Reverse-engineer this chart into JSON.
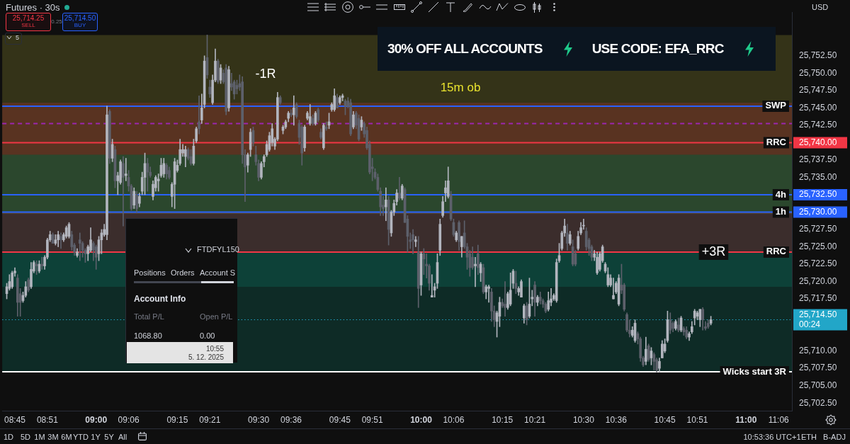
{
  "chart_data": [
    {
      "type": "candlestick",
      "title": "Futures · 30s",
      "ylabel": "USD",
      "x": [
        8.725,
        8.7333,
        8.7417,
        8.75,
        8.7583,
        8.7667,
        8.775,
        8.7833,
        8.7917,
        8.8,
        8.8083,
        8.8167,
        8.825,
        8.8333,
        8.8417,
        8.85,
        8.8583,
        8.8667,
        8.875,
        8.8833,
        8.8917,
        8.9,
        8.9083,
        8.9167,
        8.925,
        8.9333,
        8.9417,
        8.95,
        8.9583,
        8.9667,
        8.975,
        8.9833,
        8.9917,
        9,
        9.0083,
        9.0167,
        9.025,
        9.0333,
        9.0417,
        9.05,
        9.0583,
        9.0667,
        9.075,
        9.0833,
        9.0917,
        9.1,
        9.1083,
        9.1167,
        9.125,
        9.1333,
        9.1417,
        9.15,
        9.1583,
        9.1667,
        9.175,
        9.1833,
        9.1917,
        9.2,
        9.2083,
        9.2167,
        9.225,
        9.2333,
        9.2417,
        9.25,
        9.2583,
        9.2667,
        9.275,
        9.2833,
        9.2917,
        9.3,
        9.3083,
        9.3167,
        9.325,
        9.3333,
        9.3417,
        9.35,
        9.3583,
        9.3667,
        9.375,
        9.3833,
        9.3917,
        9.4,
        9.4083,
        9.4167,
        9.425,
        9.4333,
        9.4417,
        9.45,
        9.4583,
        9.4667,
        9.475,
        9.4833,
        9.4917,
        9.5,
        9.5083,
        9.5167,
        9.525,
        9.5333,
        9.5417,
        9.55,
        9.5583,
        9.5667,
        9.575,
        9.5833,
        9.5917,
        9.6,
        9.6083,
        9.6167,
        9.625,
        9.6333,
        9.6417,
        9.65,
        9.6583,
        9.6667,
        9.675,
        9.6833,
        9.6917,
        9.7,
        9.7083,
        9.7167,
        9.725,
        9.7333,
        9.7417,
        9.75,
        9.7583,
        9.7667,
        9.775,
        9.7833,
        9.7917,
        9.8,
        9.8083,
        9.8167,
        9.825,
        9.8333,
        9.8417,
        9.85,
        9.8583,
        9.8667,
        9.875,
        9.8833,
        9.8917,
        9.9,
        9.9083,
        9.9167,
        9.925,
        9.9333,
        9.9417,
        9.95,
        9.9583,
        9.9667,
        9.975,
        9.9833,
        9.9917,
        10,
        10.0083,
        10.0167,
        10.025,
        10.0333,
        10.0417,
        10.05,
        10.0583,
        10.0667,
        10.075,
        10.0833,
        10.0917,
        10.1,
        10.1083,
        10.1167,
        10.125,
        10.1333,
        10.1417,
        10.15,
        10.1583,
        10.1667,
        10.175,
        10.1833,
        10.1917,
        10.2,
        10.2083,
        10.2167,
        10.225,
        10.2333,
        10.2417,
        10.25,
        10.2583,
        10.2667,
        10.275,
        10.2833,
        10.2917,
        10.3,
        10.3083,
        10.3167,
        10.325,
        10.3333,
        10.3417,
        10.35,
        10.3583,
        10.3667,
        10.375,
        10.3833,
        10.3917,
        10.4,
        10.4083,
        10.4167,
        10.425,
        10.4333,
        10.4417,
        10.45,
        10.4583,
        10.4667,
        10.475,
        10.4833,
        10.4917,
        10.5,
        10.5083,
        10.5167,
        10.525,
        10.5333,
        10.5417,
        10.55,
        10.5583,
        10.5667,
        10.575,
        10.5833,
        10.5917,
        10.6,
        10.6083,
        10.6167,
        10.625,
        10.6333,
        10.6417,
        10.65,
        10.6583,
        10.6667,
        10.675,
        10.6833,
        10.6917,
        10.7,
        10.7083,
        10.7167,
        10.725,
        10.7333,
        10.7417,
        10.75,
        10.7583,
        10.7667,
        10.775,
        10.7833,
        10.7917,
        10.8,
        10.8083,
        10.8167,
        10.825,
        10.8333,
        10.8417,
        10.85,
        10.8583,
        10.8667,
        10.875,
        10.8833,
        10.8917
      ],
      "ohlc": [
        [
          25718.25,
          25719.75,
          25717.5,
          25719.25
        ],
        [
          25719,
          25721,
          25718.75,
          25720
        ],
        [
          25719.25,
          25721.5,
          25719,
          25721.25
        ],
        [
          25721.25,
          25722,
          25720.75,
          25721.5
        ],
        [
          25720.5,
          25721,
          25715,
          25717
        ],
        [
          25718.25,
          25719,
          25715,
          25717
        ],
        [
          25717.25,
          25718.5,
          25717,
          25718
        ],
        [
          25718,
          25720,
          25717.75,
          25719.25
        ],
        [
          25720.25,
          25720.5,
          25718.5,
          25718.75
        ],
        [
          25719.25,
          25722.75,
          25719,
          25721.75
        ],
        [
          25721.5,
          25723,
          25721.25,
          25722.75
        ],
        [
          25722.5,
          25723,
          25721,
          25722.25
        ],
        [
          25721.5,
          25723,
          25721.25,
          25722.5
        ],
        [
          25722.5,
          25723.5,
          25721.75,
          25722.25
        ],
        [
          25722.25,
          25723.75,
          25721.75,
          25723.5
        ],
        [
          25723.5,
          25726.25,
          25723.25,
          25726
        ],
        [
          25726,
          25727.25,
          25725.75,
          25726.75
        ],
        [
          25726.75,
          25727,
          25725.5,
          25725.5
        ],
        [
          25725.5,
          25726.75,
          25725.25,
          25726
        ],
        [
          25726,
          25727.25,
          25725,
          25726.75
        ],
        [
          25726.5,
          25727,
          25724.75,
          25726
        ],
        [
          25726,
          25727,
          25725.75,
          25726.75
        ],
        [
          25726.5,
          25728,
          25726.25,
          25727.75
        ],
        [
          25726.5,
          25728.5,
          25726.25,
          25728.25
        ],
        [
          25726.75,
          25727.25,
          25724.5,
          25725
        ],
        [
          25725.25,
          25725.5,
          25723.75,
          25724.25
        ],
        [
          25723.75,
          25724.75,
          25723.5,
          25724.25
        ],
        [
          25726,
          25727,
          25723,
          25725.5
        ],
        [
          25725.5,
          25725.75,
          25723.5,
          25724.5
        ],
        [
          25724.5,
          25724.75,
          25722.75,
          25724
        ],
        [
          25724,
          25725.25,
          25723,
          25725
        ],
        [
          25724.5,
          25727.75,
          25724.25,
          25726
        ],
        [
          25725.5,
          25725.75,
          25723,
          25724.5
        ],
        [
          25725,
          25725.25,
          25721.75,
          25723.5
        ],
        [
          25724,
          25726.5,
          25723,
          25726
        ],
        [
          25726,
          25727.5,
          25724,
          25727
        ],
        [
          25726.75,
          25728.25,
          25726.5,
          25727.5
        ],
        [
          25726.75,
          25745.25,
          25726,
          25744
        ],
        [
          25744.5,
          25744.75,
          25737,
          25737.75
        ],
        [
          25737.75,
          25740.5,
          25737.25,
          25739.75
        ],
        [
          25739,
          25739.5,
          25733.5,
          25734.5
        ],
        [
          25734.5,
          25735.75,
          25732.5,
          25735.25
        ],
        [
          25734.25,
          25737.5,
          25734,
          25737.25
        ],
        [
          25737,
          25738,
          25728,
          25735
        ],
        [
          25735.25,
          25737.75,
          25734.5,
          25735.5
        ],
        [
          25735,
          25736,
          25733,
          25733.75
        ],
        [
          25733.75,
          25734,
          25730.25,
          25730.5
        ],
        [
          25731,
          25733.5,
          25730.5,
          25733
        ],
        [
          25732.5,
          25733,
          25730,
          25730.5
        ],
        [
          25731.25,
          25732.75,
          25730.75,
          25732.25
        ],
        [
          25733,
          25735.75,
          25732.5,
          25735
        ],
        [
          25735,
          25738.5,
          25732.5,
          25737
        ],
        [
          25737,
          25737.75,
          25733,
          25735.75
        ],
        [
          25735.75,
          25736.5,
          25735,
          25735.25
        ],
        [
          25732.25,
          25734.5,
          25731.75,
          25734
        ],
        [
          25733.5,
          25735.25,
          25733,
          25735
        ],
        [
          25734.5,
          25735.5,
          25733,
          25734.75
        ],
        [
          25735.25,
          25737.75,
          25735,
          25736.75
        ],
        [
          25735.5,
          25737.75,
          25735,
          25737
        ],
        [
          25736.75,
          25737,
          25734.75,
          25735.5
        ],
        [
          25736,
          25736.5,
          25734.75,
          25735
        ],
        [
          25732.25,
          25734.25,
          25730.75,
          25734
        ],
        [
          25734,
          25737.75,
          25730.5,
          25737.25
        ],
        [
          25736,
          25737.5,
          25735.75,
          25736.75
        ],
        [
          25737,
          25740.5,
          25736.75,
          25739
        ],
        [
          25738.5,
          25739.75,
          25738,
          25739
        ],
        [
          25738,
          25739.5,
          25736.5,
          25739
        ],
        [
          25739,
          25739.25,
          25737.5,
          25737.75
        ],
        [
          25738,
          25739,
          25736.75,
          25737
        ],
        [
          25737,
          25740.5,
          25736.75,
          25739.5
        ],
        [
          25740.25,
          25742.25,
          25740,
          25742
        ],
        [
          25743,
          25746.75,
          25741.25,
          25742
        ],
        [
          25743.25,
          25747,
          25742.75,
          25745
        ],
        [
          25745.5,
          25752.5,
          25745,
          25751.75
        ],
        [
          25752.25,
          25755.5,
          25749.25,
          25749.75
        ],
        [
          25748,
          25749,
          25746.5,
          25747
        ],
        [
          25745.75,
          25749.75,
          25745.5,
          25749
        ],
        [
          25749,
          25753.5,
          25748.75,
          25751.75
        ],
        [
          25751.75,
          25752,
          25748.5,
          25748.75
        ],
        [
          25749,
          25751.25,
          25748.5,
          25750.75
        ],
        [
          25750,
          25750.5,
          25748.5,
          25748.75
        ],
        [
          25750.75,
          25751.25,
          25744,
          25744.5
        ],
        [
          25745,
          25751,
          25744.5,
          25750.5
        ],
        [
          25748.5,
          25750,
          25747.5,
          25748
        ],
        [
          25748.75,
          25749,
          25746.25,
          25747
        ],
        [
          25748.25,
          25749,
          25747,
          25747.75
        ],
        [
          25748.5,
          25749.75,
          25747.5,
          25748
        ],
        [
          25748.75,
          25749.5,
          25737,
          25738.25
        ],
        [
          25738.25,
          25739,
          25731.5,
          25736.5
        ],
        [
          25736.75,
          25738.5,
          25735.75,
          25738.25
        ],
        [
          25739,
          25742,
          25738,
          25741.5
        ],
        [
          25741.75,
          25742.25,
          25739.5,
          25740
        ],
        [
          25738.25,
          25739.5,
          25736.75,
          25737.25
        ],
        [
          25737,
          25737.5,
          25734.5,
          25735
        ],
        [
          25735,
          25737.25,
          25734.75,
          25737
        ],
        [
          25737.25,
          25738.25,
          25736.5,
          25738
        ],
        [
          25738.25,
          25740.25,
          25738,
          25739.75
        ],
        [
          25739,
          25741.5,
          25738.75,
          25741
        ],
        [
          25740,
          25742.75,
          25739.5,
          25742
        ],
        [
          25739.5,
          25740.75,
          25739,
          25740.5
        ],
        [
          25740.5,
          25747.25,
          25740.25,
          25746.5
        ],
        [
          25746.5,
          25746.75,
          25745.5,
          25745.75
        ],
        [
          25741.75,
          25742.5,
          25741.25,
          25742.25
        ],
        [
          25742.25,
          25743.25,
          25742,
          25743
        ],
        [
          25743.5,
          25744.5,
          25743,
          25744.25
        ],
        [
          25744.25,
          25744.75,
          25743.75,
          25744
        ],
        [
          25744,
          25746.75,
          25742.5,
          25745
        ],
        [
          25745.5,
          25745.75,
          25743.5,
          25743.75
        ],
        [
          25742.75,
          25743.25,
          25739.75,
          25740.75
        ],
        [
          25742.25,
          25742.5,
          25736.75,
          25738.5
        ],
        [
          25739.25,
          25742.5,
          25738.75,
          25742.25
        ],
        [
          25743.5,
          25744.5,
          25743.25,
          25744.25
        ],
        [
          25742.75,
          25745.5,
          25742.5,
          25743.75
        ],
        [
          25743.5,
          25744,
          25742.5,
          25742.75
        ],
        [
          25742.75,
          25744.5,
          25742.5,
          25744.25
        ],
        [
          25744.75,
          25745,
          25743,
          25743.25
        ],
        [
          25741.5,
          25742,
          25740.5,
          25740.75
        ],
        [
          25739.25,
          25742.75,
          25739,
          25742.5
        ],
        [
          25742.25,
          25743,
          25741.75,
          25742
        ],
        [
          25742.5,
          25744.25,
          25742,
          25743
        ],
        [
          25744.75,
          25745.75,
          25744.5,
          25745.5
        ],
        [
          25744.75,
          25747.75,
          25744.5,
          25746.75
        ],
        [
          25746.5,
          25747,
          25745,
          25745
        ],
        [
          25745.75,
          25746.75,
          25745.5,
          25746.5
        ],
        [
          25746.5,
          25747,
          25746,
          25746.75
        ],
        [
          25746,
          25746.25,
          25744,
          25745.25
        ],
        [
          25746,
          25746.5,
          25745,
          25745.25
        ],
        [
          25745.75,
          25746.25,
          25741,
          25741.25
        ],
        [
          25742.25,
          25744.5,
          25742,
          25744
        ],
        [
          25744.25,
          25744.5,
          25742,
          25742.5
        ],
        [
          25743.5,
          25744,
          25740.25,
          25740.5
        ],
        [
          25742.25,
          25743.75,
          25741.75,
          25743.25
        ],
        [
          25742.75,
          25743,
          25740.75,
          25741.25
        ],
        [
          25741.75,
          25742.25,
          25739,
          25739.25
        ],
        [
          25739.75,
          25740.25,
          25735.5,
          25735.75
        ],
        [
          25736.5,
          25737.75,
          25734.5,
          25736.25
        ],
        [
          25735.75,
          25736.25,
          25734.75,
          25735
        ],
        [
          25735,
          25735.5,
          25733,
          25733.25
        ],
        [
          25733,
          25733.5,
          25729.5,
          25730.75
        ],
        [
          25731,
          25732.25,
          25729.5,
          25730.5
        ],
        [
          25730.75,
          25733.5,
          25728.75,
          25731.75
        ],
        [
          25731.75,
          25732.25,
          25725.25,
          25727.5
        ],
        [
          25727,
          25730.25,
          25726.5,
          25730
        ],
        [
          25730,
          25731.75,
          25729.5,
          25731.25
        ],
        [
          25731.5,
          25733.25,
          25731,
          25732.75
        ],
        [
          25732.75,
          25735,
          25731.75,
          25732
        ],
        [
          25732,
          25734,
          25731.75,
          25733.75
        ],
        [
          25733.25,
          25733.5,
          25728.5,
          25728.5
        ],
        [
          25729,
          25729.5,
          25724.25,
          25726.5
        ],
        [
          25726,
          25727,
          25724.75,
          25725.75
        ],
        [
          25726.75,
          25727.5,
          25724,
          25726
        ],
        [
          25725.75,
          25726.5,
          25725,
          25726
        ],
        [
          25724.25,
          25726.5,
          25716.25,
          25719
        ],
        [
          25719.5,
          25724.25,
          25718,
          25724
        ],
        [
          25724,
          25724.75,
          25721,
          25723.25
        ],
        [
          25722.5,
          25724,
          25720.5,
          25722.25
        ],
        [
          25722.25,
          25722.5,
          25718.75,
          25719.75
        ],
        [
          25717.75,
          25721,
          25717.75,
          25718
        ],
        [
          25718.75,
          25719.75,
          25717.75,
          25719.25
        ],
        [
          25719.75,
          25724,
          25719,
          25722.75
        ],
        [
          25724.5,
          25729,
          25723.75,
          25728.25
        ],
        [
          25729.5,
          25732.25,
          25729.25,
          25731.5
        ],
        [
          25732.75,
          25734.5,
          25731.5,
          25733.5
        ],
        [
          25732.25,
          25736.5,
          25732,
          25734.5
        ],
        [
          25732.5,
          25733,
          25728.75,
          25729
        ],
        [
          25728.5,
          25729,
          25726.5,
          25726.75
        ],
        [
          25726,
          25727.25,
          25725.75,
          25727
        ],
        [
          25728.5,
          25728.75,
          25724.5,
          25725.75
        ],
        [
          25725,
          25726.5,
          25723.5,
          25726.5
        ],
        [
          25727,
          25728.75,
          25724.75,
          25725
        ],
        [
          25725,
          25725.5,
          25721.75,
          25723.5
        ],
        [
          25724,
          25724.5,
          25720.75,
          25722
        ],
        [
          25723.5,
          25725,
          25721.75,
          25722
        ],
        [
          25722.25,
          25723.5,
          25719.25,
          25722.5
        ],
        [
          25724,
          25725.25,
          25721,
          25722
        ],
        [
          25721.25,
          25722.75,
          25720,
          25722.5
        ],
        [
          25722,
          25722.5,
          25718.25,
          25718.5
        ],
        [
          25718.5,
          25719.5,
          25717.5,
          25719.25
        ],
        [
          25719,
          25719.5,
          25717,
          25719.25
        ],
        [
          25718.5,
          25719,
          25714.25,
          25715.75
        ],
        [
          25715.75,
          25716.5,
          25713.5,
          25714.5
        ],
        [
          25714.25,
          25715.75,
          25712,
          25715.5
        ],
        [
          25715,
          25717.75,
          25713.5,
          25717
        ],
        [
          25717,
          25717.5,
          25716.25,
          25716.5
        ],
        [
          25716.75,
          25720,
          25715,
          25716.25
        ],
        [
          25716.25,
          25718.5,
          25716,
          25718.25
        ],
        [
          25716.75,
          25721.25,
          25716.5,
          25718.75
        ],
        [
          25719.75,
          25721.75,
          25719,
          25721.5
        ],
        [
          25719.75,
          25721.5,
          25718.25,
          25719
        ],
        [
          25718.5,
          25719.25,
          25718,
          25719
        ],
        [
          25717.75,
          25720.25,
          25717.75,
          25720
        ],
        [
          25714.75,
          25716.75,
          25714,
          25716.5
        ],
        [
          25716.5,
          25717,
          25713.75,
          25714.5
        ],
        [
          25715,
          25720.5,
          25714.75,
          25716.75
        ],
        [
          25717.5,
          25718.75,
          25716.5,
          25717.75
        ],
        [
          25719.5,
          25720,
          25715,
          25717
        ],
        [
          25717,
          25718,
          25716.5,
          25717.75
        ],
        [
          25717.75,
          25718.5,
          25716.75,
          25717.25
        ],
        [
          25717.25,
          25717.5,
          25716.25,
          25716.75
        ],
        [
          25716.75,
          25717,
          25715.5,
          25715.75
        ],
        [
          25716,
          25718.5,
          25715.75,
          25717.25
        ],
        [
          25717,
          25719,
          25716.5,
          25717.5
        ],
        [
          25717.5,
          25718.25,
          25717.25,
          25718
        ],
        [
          25717.25,
          25723.25,
          25717,
          25722.75
        ],
        [
          25723,
          25725.5,
          25722.75,
          25723.75
        ],
        [
          25724.75,
          25727.25,
          25724.5,
          25727
        ],
        [
          25727,
          25729,
          25726.5,
          25728
        ],
        [
          25727,
          25728.25,
          25724.5,
          25725.5
        ],
        [
          25725.5,
          25727.25,
          25725.25,
          25726.75
        ],
        [
          25725,
          25726,
          25722.25,
          25722.5
        ],
        [
          25724,
          25724.5,
          25722.25,
          25722.5
        ],
        [
          25724.75,
          25727.25,
          25724.5,
          25726.5
        ],
        [
          25727,
          25728.5,
          25726.75,
          25727.75
        ],
        [
          25728,
          25729,
          25727.5,
          25728
        ],
        [
          25727.25,
          25727.75,
          25724.5,
          25725
        ],
        [
          25726,
          25726.25,
          25723.75,
          25724.75
        ],
        [
          25725,
          25725.25,
          25723,
          25723.5
        ],
        [
          25723.5,
          25724.5,
          25723,
          25724
        ],
        [
          25721.25,
          25724.25,
          25721,
          25723.5
        ],
        [
          25721.75,
          25724.25,
          25721.5,
          25724
        ],
        [
          25723,
          25725.25,
          25722.75,
          25725
        ],
        [
          25721.5,
          25722.75,
          25721.25,
          25722.5
        ],
        [
          25719.5,
          25722,
          25719.25,
          25721
        ],
        [
          25719.5,
          25721,
          25719.25,
          25720.5
        ],
        [
          25717.5,
          25720.5,
          25717.5,
          25718
        ],
        [
          25718.5,
          25720,
          25718.25,
          25719.75
        ],
        [
          25716.75,
          25721,
          25716.5,
          25720.5
        ],
        [
          25719.5,
          25722.5,
          25718.25,
          25718.75
        ],
        [
          25719.5,
          25719.75,
          25715.75,
          25716
        ],
        [
          25715.25,
          25715.5,
          25712.75,
          25713
        ],
        [
          25713,
          25714.5,
          25712,
          25712.5
        ],
        [
          25712.25,
          25713.5,
          25712,
          25713
        ],
        [
          25711.5,
          25714.5,
          25711.25,
          25714
        ],
        [
          25712.5,
          25712.75,
          25711,
          25711.75
        ],
        [
          25711.75,
          25712,
          25708.5,
          25709
        ],
        [
          25709,
          25709.25,
          25707.75,
          25708
        ],
        [
          25708.5,
          25712,
          25708,
          25710.25
        ],
        [
          25710.75,
          25711,
          25708.5,
          25708.75
        ],
        [
          25709,
          25710.5,
          25708,
          25710
        ],
        [
          25709.5,
          25709.75,
          25707.25,
          25708.5
        ],
        [
          25708.75,
          25709,
          25707,
          25707.25
        ],
        [
          25707.5,
          25709,
          25707,
          25708.5
        ],
        [
          25709,
          25711.5,
          25709,
          25711
        ],
        [
          25710,
          25711.75,
          25709.75,
          25711
        ],
        [
          25711.5,
          25715.75,
          25711.25,
          25714.5
        ],
        [
          25714.5,
          25715.5,
          25712.5,
          25713
        ],
        [
          25714,
          25714.25,
          25712.75,
          25713.25
        ],
        [
          25713.25,
          25714.5,
          25713,
          25714.25
        ],
        [
          25713.75,
          25714.75,
          25712.75,
          25713
        ],
        [
          25713,
          25715,
          25712.75,
          25714.75
        ],
        [
          25713.25,
          25713.5,
          25712.25,
          25712.75
        ],
        [
          25713,
          25713.5,
          25711.75,
          25712
        ],
        [
          25712,
          25712.75,
          25711.5,
          25712.5
        ],
        [
          25712.75,
          25714.25,
          25712.5,
          25713.5
        ],
        [
          25714.75,
          25716,
          25713.75,
          25715.75
        ],
        [
          25715,
          25715.75,
          25714.5,
          25715.5
        ],
        [
          25714.5,
          25716,
          25713.5,
          25716
        ],
        [
          25716,
          25716.25,
          25713,
          25714.5
        ],
        [
          25713.5,
          25714.25,
          25713,
          25713.25
        ],
        [
          25714,
          25714.5,
          25713.25,
          25713.5
        ],
        [
          25714,
          25715,
          25713.75,
          25714.5
        ]
      ],
      "xlim": [
        8.711,
        11.141
      ],
      "xticks": [
        {
          "value": 8.75,
          "label": "08:45"
        },
        {
          "value": 8.85,
          "label": "08:51"
        },
        {
          "value": 9,
          "label": "09:00"
        },
        {
          "value": 9.1,
          "label": "09:06"
        },
        {
          "value": 9.25,
          "label": "09:15"
        },
        {
          "value": 9.35,
          "label": "09:21"
        },
        {
          "value": 9.5,
          "label": "09:30"
        },
        {
          "value": 9.6,
          "label": "09:36"
        },
        {
          "value": 9.75,
          "label": "09:45"
        },
        {
          "value": 9.85,
          "label": "09:51"
        },
        {
          "value": 10,
          "label": "10:00"
        },
        {
          "value": 10.1,
          "label": "10:06"
        },
        {
          "value": 10.25,
          "label": "10:15"
        },
        {
          "value": 10.35,
          "label": "10:21"
        },
        {
          "value": 10.5,
          "label": "10:30"
        },
        {
          "value": 10.6,
          "label": "10:36"
        },
        {
          "value": 10.75,
          "label": "10:45"
        },
        {
          "value": 10.85,
          "label": "10:51"
        },
        {
          "value": 11,
          "label": "11:00"
        },
        {
          "value": 11.1,
          "label": "11:06"
        }
      ],
      "ylim": [
        25701.4,
        25758.8
      ],
      "yticks": [
        {
          "value": 25702.5,
          "label": "25,702.50"
        },
        {
          "value": 25705,
          "label": "25,705.00"
        },
        {
          "value": 25707.5,
          "label": "25,707.50"
        },
        {
          "value": 25710,
          "label": "25,710.00"
        },
        {
          "value": 25714.5,
          "label": "25,714.50\n00:24"
        },
        {
          "value": 25717.5,
          "label": "25,717.50"
        },
        {
          "value": 25720,
          "label": "25,720.00"
        },
        {
          "value": 25722.5,
          "label": "25,722.50"
        },
        {
          "value": 25725,
          "label": "25,725.00"
        },
        {
          "value": 25727.5,
          "label": "25,727.50"
        },
        {
          "value": 25730,
          "label": "25,730.00"
        },
        {
          "value": 25732.5,
          "label": "25,732.50"
        },
        {
          "value": 25735,
          "label": "25,735.00"
        },
        {
          "value": 25737.5,
          "label": "25,737.50"
        },
        {
          "value": 25740,
          "label": "25,740.00"
        },
        {
          "value": 25742.5,
          "label": "25,742.50"
        },
        {
          "value": 25745,
          "label": "25,745.00"
        },
        {
          "value": 25747.5,
          "label": "25,747.50"
        },
        {
          "value": 25750,
          "label": "25,750.00"
        },
        {
          "value": 25752.5,
          "label": "25,752.50"
        }
      ],
      "bands": [
        {
          "axis": "y",
          "from": 25729.75,
          "to": 25755.5,
          "color": "#c8c23c"
        },
        {
          "axis": "y",
          "from": 25738.25,
          "to": 25745.75,
          "color": "#f23645"
        },
        {
          "axis": "y",
          "from": 25719.25,
          "to": 25738.25,
          "color": "#089981"
        },
        {
          "axis": "y",
          "from": 25724.25,
          "to": 25730,
          "color": "#f23645"
        },
        {
          "axis": "y",
          "from": 25707,
          "to": 25724.25,
          "color": "#089981"
        }
      ],
      "ref_lines": [
        {
          "axis": "y",
          "value": 25745.25,
          "label": "SWP",
          "color": "#2962ff"
        },
        {
          "axis": "y",
          "value": 25742.75,
          "color": "#9c27b0",
          "line_style": "dashed"
        },
        {
          "axis": "y",
          "value": 25740,
          "label": "RRC",
          "color": "#f23645"
        },
        {
          "axis": "y",
          "value": 25732.5,
          "label": "4h",
          "color": "#2962ff"
        },
        {
          "axis": "y",
          "value": 25730,
          "label": "1h",
          "color": "#2962ff"
        },
        {
          "axis": "y",
          "value": 25724.25,
          "label": "RRC",
          "color": "#f23645"
        },
        {
          "axis": "y",
          "value": 25714.5,
          "color": "#22a6c8",
          "line_style": "dotted"
        },
        {
          "axis": "y",
          "value": 25707,
          "label": "Wicks start 3R",
          "color": "#ffffff"
        }
      ],
      "annotations": [
        "-1R",
        "15m ob",
        {
          "text": "+3R",
          "x": 10.9,
          "y": 25724.25
        }
      ]
    },
    {
      "type": "other",
      "annotations": [
        "25,714.25",
        "SELL",
        "0.25",
        "25,714.50",
        "BUY",
        "5"
      ]
    },
    {
      "type": "other",
      "title": "Account Info",
      "annotations": [
        "FTDFYL150",
        "Positions",
        "Orders",
        "Account S",
        "Total P/L",
        "Open P/L",
        "1068.80",
        "0.00",
        "10:55",
        "5. 12. 2025"
      ]
    },
    {
      "type": "other",
      "annotations": [
        "1D",
        "5D",
        "1M",
        "3M",
        "6M",
        "YTD",
        "1Y",
        "5Y",
        "All",
        "10:53:36 UTC+1",
        "ETH",
        "B-ADJ"
      ]
    },
    {
      "type": "other",
      "annotations": [
        "30% OFF ALL ACCOUNTS",
        "USE CODE: EFA_RRC"
      ]
    }
  ]
}
